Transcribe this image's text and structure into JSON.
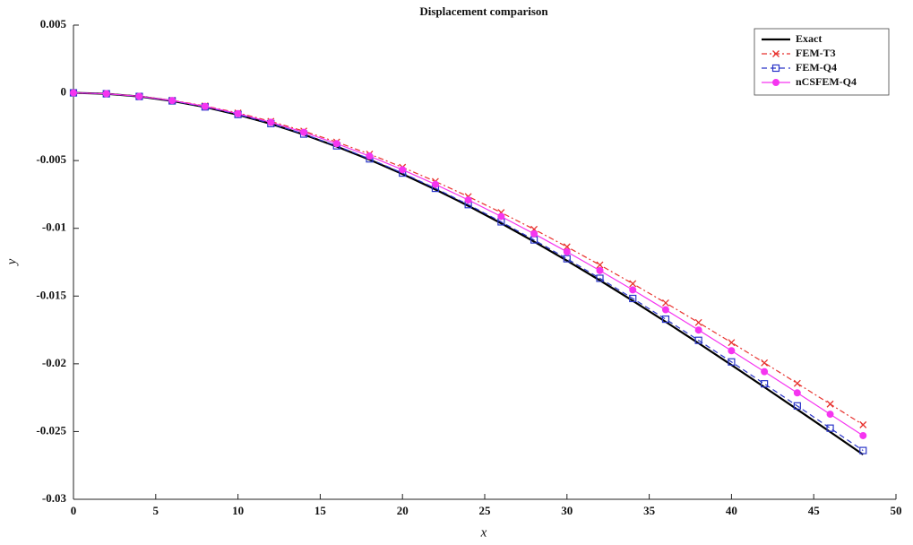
{
  "chart_data": {
    "type": "line",
    "title": "Displacement comparison",
    "x_label": "x",
    "y_label": "y",
    "x": [
      0,
      2,
      4,
      6,
      8,
      10,
      12,
      14,
      16,
      18,
      20,
      22,
      24,
      26,
      28,
      30,
      32,
      34,
      36,
      38,
      40,
      42,
      44,
      46,
      48
    ],
    "series": [
      {
        "name": "Exact",
        "color": "#000000",
        "dash": "solid",
        "marker": "none",
        "values": [
          0,
          -6.9e-05,
          -0.00027,
          -0.0006,
          -0.00105,
          -0.00162,
          -0.00229,
          -0.00308,
          -0.00396,
          -0.00493,
          -0.00599,
          -0.00713,
          -0.00834,
          -0.00963,
          -0.01098,
          -0.01239,
          -0.01384,
          -0.01535,
          -0.0169,
          -0.01848,
          -0.02009,
          -0.02172,
          -0.02337,
          -0.02503,
          -0.0267
        ]
      },
      {
        "name": "FEM-T3",
        "color": "#e8322e",
        "dash": "dashdot",
        "marker": "cross",
        "values": [
          0,
          -6.3e-05,
          -0.000248,
          -0.00055,
          -0.000964,
          -0.001484,
          -0.002105,
          -0.002822,
          -0.00363,
          -0.004522,
          -0.005494,
          -0.00654,
          -0.007656,
          -0.008836,
          -0.010074,
          -0.011365,
          -0.012704,
          -0.014085,
          -0.015504,
          -0.016955,
          -0.018432,
          -0.01993,
          -0.021445,
          -0.02297,
          -0.0245
        ]
      },
      {
        "name": "FEM-Q4",
        "color": "#2a35c8",
        "dash": "dashed",
        "marker": "square",
        "values": [
          0,
          -6.8e-05,
          -0.000267,
          -0.000593,
          -0.001039,
          -0.001599,
          -0.002269,
          -0.003041,
          -0.003911,
          -0.004873,
          -0.00592,
          -0.007048,
          -0.00825,
          -0.009521,
          -0.010855,
          -0.012246,
          -0.013689,
          -0.015178,
          -0.016706,
          -0.018269,
          -0.019861,
          -0.021476,
          -0.023108,
          -0.024751,
          -0.0264
        ]
      },
      {
        "name": "nCSFEM-Q4",
        "color": "#f535f0",
        "dash": "solid",
        "marker": "circle",
        "values": [
          0,
          -6.5e-05,
          -0.000256,
          -0.000568,
          -0.000996,
          -0.001533,
          -0.002174,
          -0.002914,
          -0.003748,
          -0.00467,
          -0.005673,
          -0.006754,
          -0.007906,
          -0.009124,
          -0.010403,
          -0.011736,
          -0.013119,
          -0.014545,
          -0.01601,
          -0.017508,
          -0.019033,
          -0.020581,
          -0.022145,
          -0.02372,
          -0.0253
        ]
      }
    ],
    "xlim": [
      0,
      50
    ],
    "xticks": [
      0,
      5,
      10,
      15,
      20,
      25,
      30,
      35,
      40,
      45,
      50
    ],
    "ylim": [
      -0.03,
      0.005
    ],
    "yticks": [
      0.005,
      0,
      -0.005,
      -0.01,
      -0.015,
      -0.02,
      -0.025,
      -0.03
    ],
    "grid": false,
    "legend": "top-right"
  }
}
